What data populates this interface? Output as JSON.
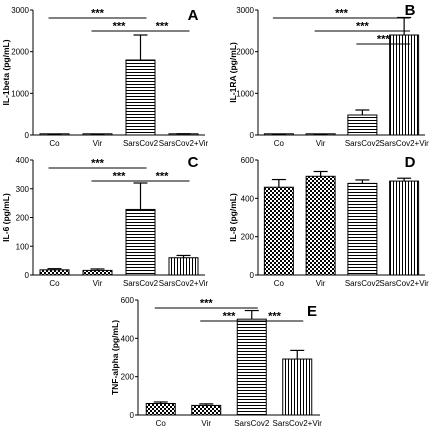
{
  "categories": [
    "Co",
    "Vir",
    "SarsCov2",
    "SarsCov2+Vir"
  ],
  "significance_label": "***",
  "chart_data": [
    {
      "type": "bar",
      "panel": "A",
      "ylabel": "IL-1beta (pg/mL)",
      "ylim": [
        0,
        3000
      ],
      "yticks": [
        0,
        1000,
        2000,
        3000
      ],
      "values": [
        15,
        10,
        1800,
        20
      ],
      "errors": [
        5,
        5,
        600,
        10
      ],
      "patterns": [
        "hlines",
        "hlines",
        "hlines",
        "hlines"
      ],
      "brackets": [
        {
          "from": 0,
          "to": 2,
          "level": 0,
          "label": "***"
        },
        {
          "from": 1,
          "to": 2,
          "level": 1,
          "label": "***"
        },
        {
          "from": 2,
          "to": 3,
          "level": 1,
          "label": "***"
        }
      ]
    },
    {
      "type": "bar",
      "panel": "B",
      "ylabel": "IL-1RA (pg/mL)",
      "ylim": [
        0,
        3000
      ],
      "yticks": [
        0,
        1000,
        2000,
        3000
      ],
      "values": [
        10,
        10,
        480,
        2400
      ],
      "errors": [
        5,
        5,
        120,
        420
      ],
      "patterns": [
        "hlines",
        "hlines",
        "hlines",
        "vlines"
      ],
      "brackets": [
        {
          "from": 0,
          "to": 3,
          "level": 0,
          "label": "***"
        },
        {
          "from": 1,
          "to": 3,
          "level": 1,
          "label": "***"
        },
        {
          "from": 2,
          "to": 3,
          "level": 2,
          "label": "***"
        }
      ]
    },
    {
      "type": "bar",
      "panel": "C",
      "ylabel": "IL-6 (pg/mL)",
      "ylim": [
        0,
        400
      ],
      "yticks": [
        0,
        100,
        200,
        300,
        400
      ],
      "values": [
        18,
        16,
        228,
        60
      ],
      "errors": [
        4,
        5,
        92,
        8
      ],
      "patterns": [
        "checker",
        "checker",
        "hlines",
        "vlines"
      ],
      "brackets": [
        {
          "from": 0,
          "to": 2,
          "level": 0,
          "label": "***"
        },
        {
          "from": 1,
          "to": 2,
          "level": 1,
          "label": "***"
        },
        {
          "from": 2,
          "to": 3,
          "level": 1,
          "label": "***"
        }
      ]
    },
    {
      "type": "bar",
      "panel": "D",
      "ylabel": "IL-8 (pg/mL)",
      "ylim": [
        0,
        600
      ],
      "yticks": [
        0,
        200,
        400,
        600
      ],
      "values": [
        458,
        515,
        478,
        490
      ],
      "errors": [
        40,
        25,
        18,
        15
      ],
      "patterns": [
        "checker",
        "checker",
        "hlines",
        "vlines"
      ],
      "brackets": []
    },
    {
      "type": "bar",
      "panel": "E",
      "ylabel": "TNF-alpha (pg/mL)",
      "ylim": [
        0,
        600
      ],
      "yticks": [
        0,
        200,
        400,
        600
      ],
      "values": [
        60,
        50,
        500,
        292
      ],
      "errors": [
        8,
        8,
        45,
        45
      ],
      "patterns": [
        "checker",
        "checker",
        "hlines",
        "vlines"
      ],
      "brackets": [
        {
          "from": 0,
          "to": 2,
          "level": 0,
          "label": "***"
        },
        {
          "from": 1,
          "to": 2,
          "level": 1,
          "label": "***"
        },
        {
          "from": 2,
          "to": 3,
          "level": 1,
          "label": "***"
        }
      ]
    }
  ]
}
